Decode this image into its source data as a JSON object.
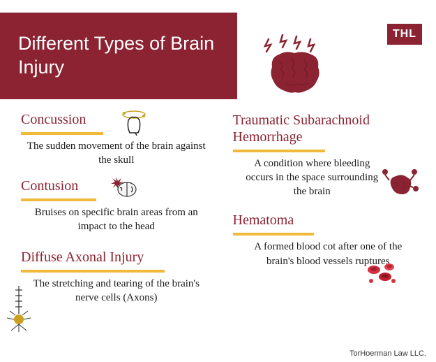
{
  "header": {
    "title": "Different Types of Brain Injury",
    "logo": "THL"
  },
  "colors": {
    "primary": "#8b2332",
    "accent": "#f0b93a",
    "text": "#1a1a1a",
    "background": "#ffffff"
  },
  "left_items": [
    {
      "title": "Concussion",
      "desc": "The sudden movement of the brain against the skull",
      "underline_width": 118,
      "icon": "head-dizzy-icon"
    },
    {
      "title": "Contusion",
      "desc": "Bruises on specific brain areas from an impact to the head",
      "underline_width": 108,
      "icon": "brain-impact-icon"
    },
    {
      "title": "Diffuse Axonal Injury",
      "desc": "The stretching and tearing of the brain's nerve cells (Axons)",
      "underline_width": 206,
      "icon": "neuron-icon"
    }
  ],
  "right_items": [
    {
      "title": "Traumatic Subarachnoid Hemorrhage",
      "desc": "A condition where bleeding occurs in the space surrounding the brain",
      "underline_width": 132,
      "icon": "brain-bleed-icon"
    },
    {
      "title": "Hematoma",
      "desc": "A formed blood cot after one of the brain's blood vessels ruptures",
      "underline_width": 116,
      "icon": "blood-cells-icon"
    }
  ],
  "footer": "TorHoerman Law LLC."
}
